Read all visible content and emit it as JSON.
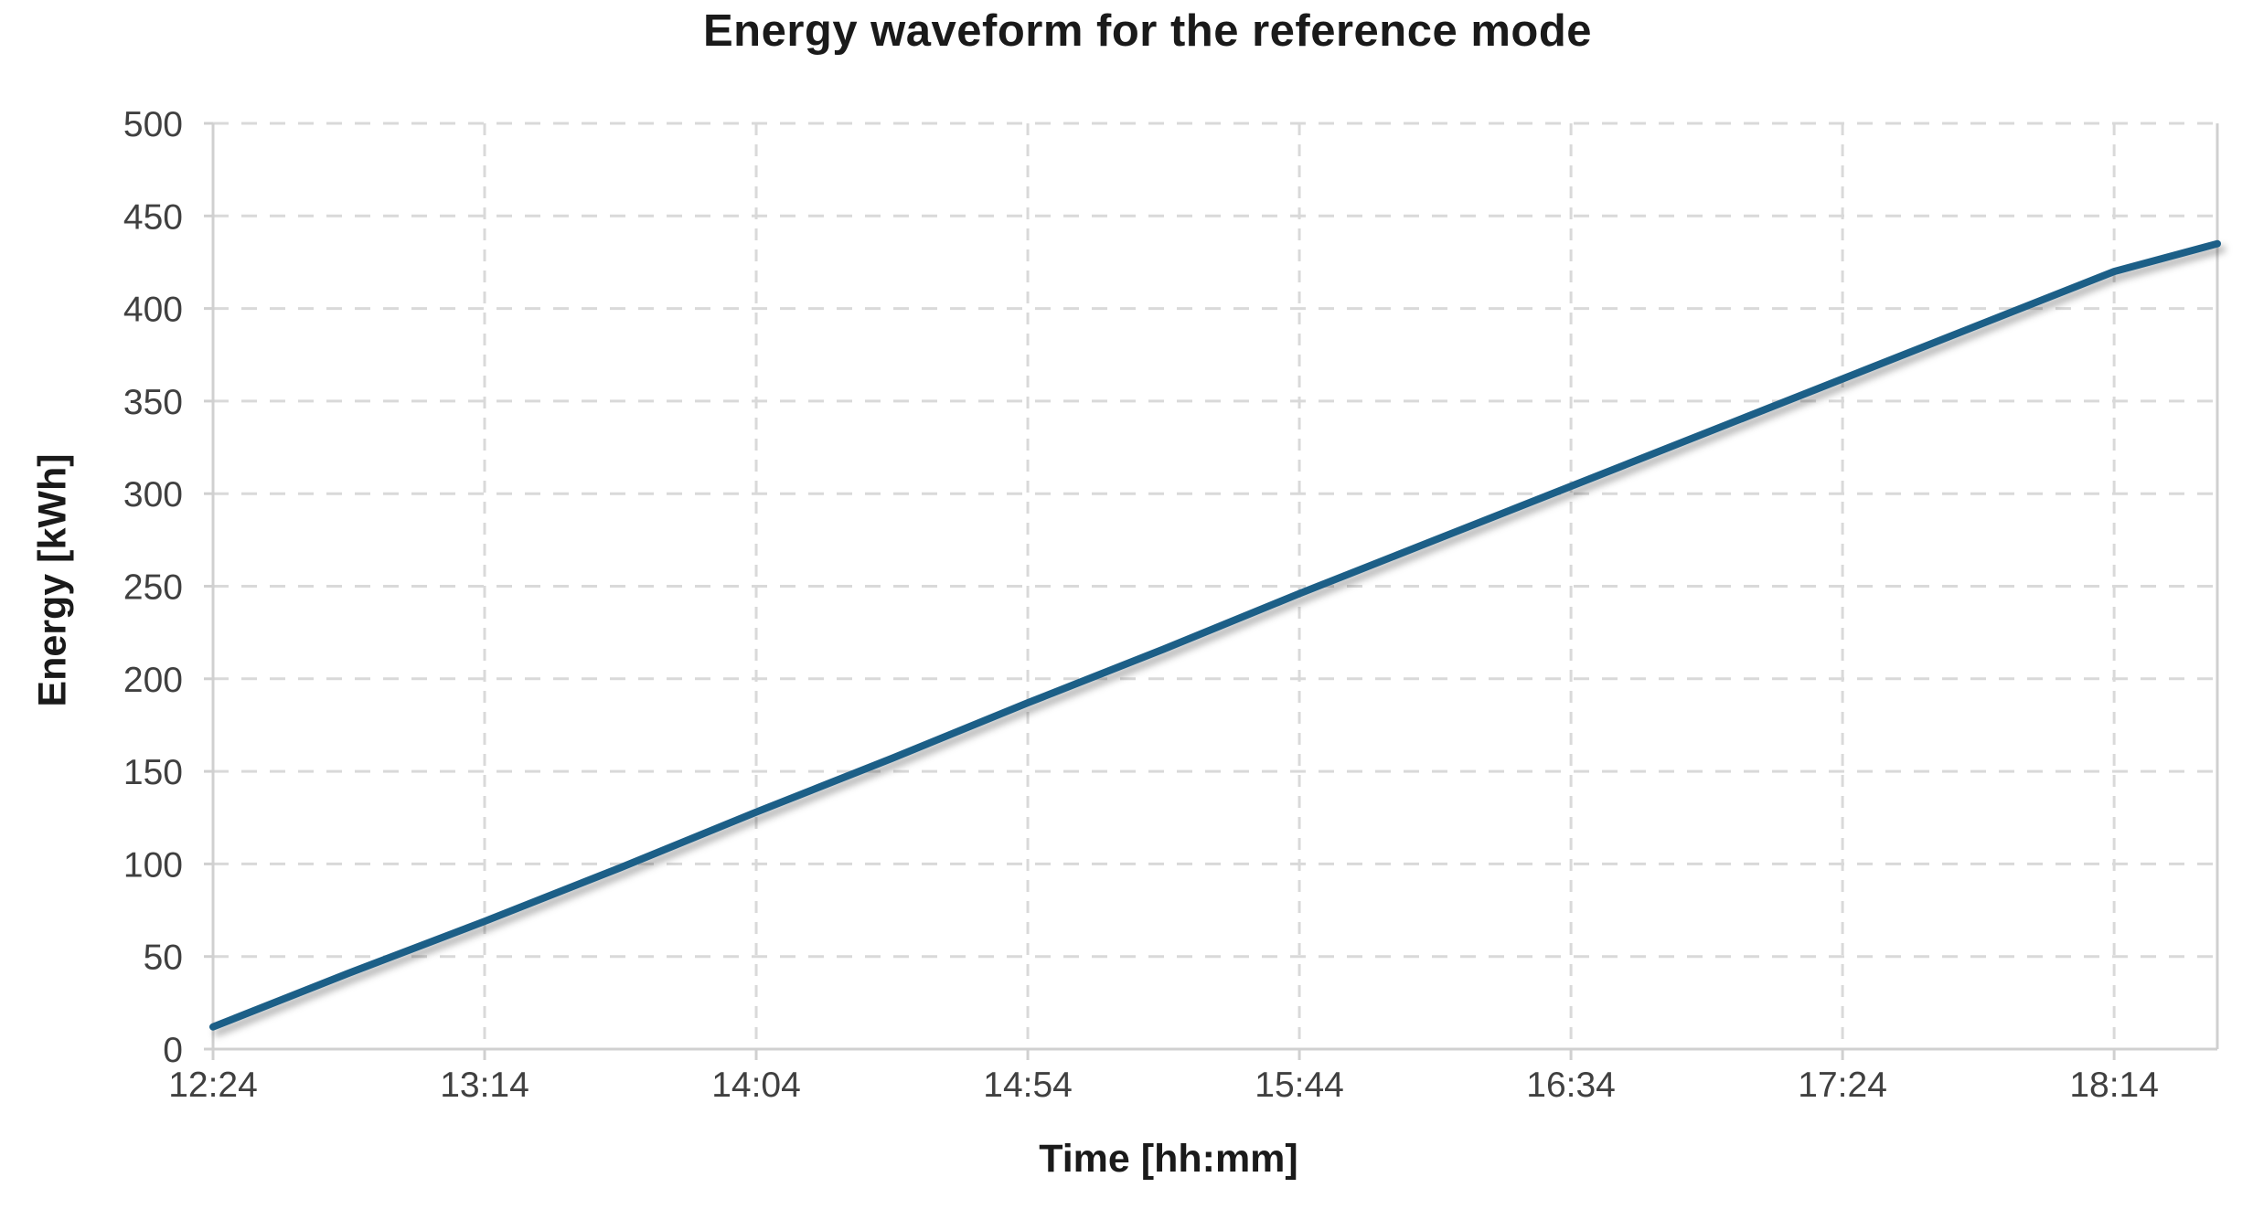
{
  "chart_data": {
    "type": "line",
    "title": "Energy waveform for the reference mode",
    "xlabel": "Time [hh:mm]",
    "ylabel": "Energy [kWh]",
    "x_tick_labels": [
      "12:24",
      "13:14",
      "14:04",
      "14:54",
      "15:44",
      "16:34",
      "17:24",
      "18:14"
    ],
    "x_domain": [
      "12:24",
      "18:33"
    ],
    "ylim": [
      0,
      500
    ],
    "y_tick_step": 50,
    "grid": "dashed",
    "legend": "none",
    "colors": {
      "series_line": "#1f5f87",
      "gridline": "#d9d9d9",
      "axis_line": "#d0d0d0",
      "tick_label": "#404040",
      "title_text": "#1a1a1a"
    },
    "series": [
      {
        "name": "Energy",
        "points": [
          [
            "12:24",
            12
          ],
          [
            "12:49",
            41
          ],
          [
            "13:14",
            69
          ],
          [
            "13:39",
            98
          ],
          [
            "14:04",
            128
          ],
          [
            "14:29",
            157
          ],
          [
            "14:54",
            187
          ],
          [
            "15:19",
            216
          ],
          [
            "15:44",
            246
          ],
          [
            "16:09",
            275
          ],
          [
            "16:34",
            304
          ],
          [
            "16:59",
            333
          ],
          [
            "17:24",
            362
          ],
          [
            "17:49",
            391
          ],
          [
            "18:14",
            420
          ],
          [
            "18:33",
            435
          ]
        ]
      }
    ]
  }
}
